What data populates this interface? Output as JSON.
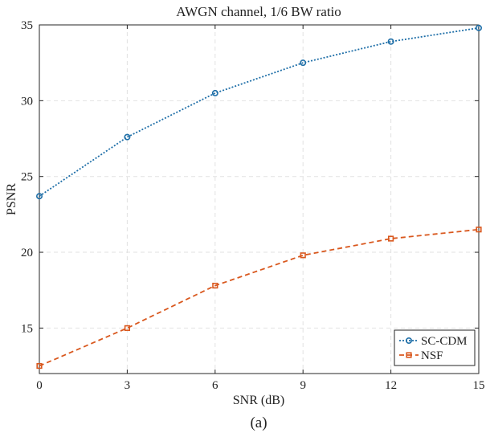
{
  "chart_data": {
    "type": "line",
    "title": "AWGN channel, 1/6 BW ratio",
    "xlabel": "SNR (dB)",
    "ylabel": "PSNR",
    "caption": "(a)",
    "x": [
      0,
      3,
      6,
      9,
      12,
      15
    ],
    "xlim": [
      0,
      15
    ],
    "ylim": [
      12,
      35
    ],
    "xticks": [
      0,
      3,
      6,
      9,
      12,
      15
    ],
    "yticks": [
      15,
      20,
      25,
      30,
      35
    ],
    "grid": true,
    "legend_position": "bottom-right",
    "series": [
      {
        "name": "SC-CDM",
        "values": [
          23.7,
          27.6,
          30.5,
          32.5,
          33.9,
          34.8
        ],
        "color": "#1f6fa8",
        "line_style": "dotted",
        "marker": "circle"
      },
      {
        "name": "NSF",
        "values": [
          12.5,
          15.0,
          17.8,
          19.8,
          20.9,
          21.5
        ],
        "color": "#d9581e",
        "line_style": "dashed",
        "marker": "square"
      }
    ]
  }
}
